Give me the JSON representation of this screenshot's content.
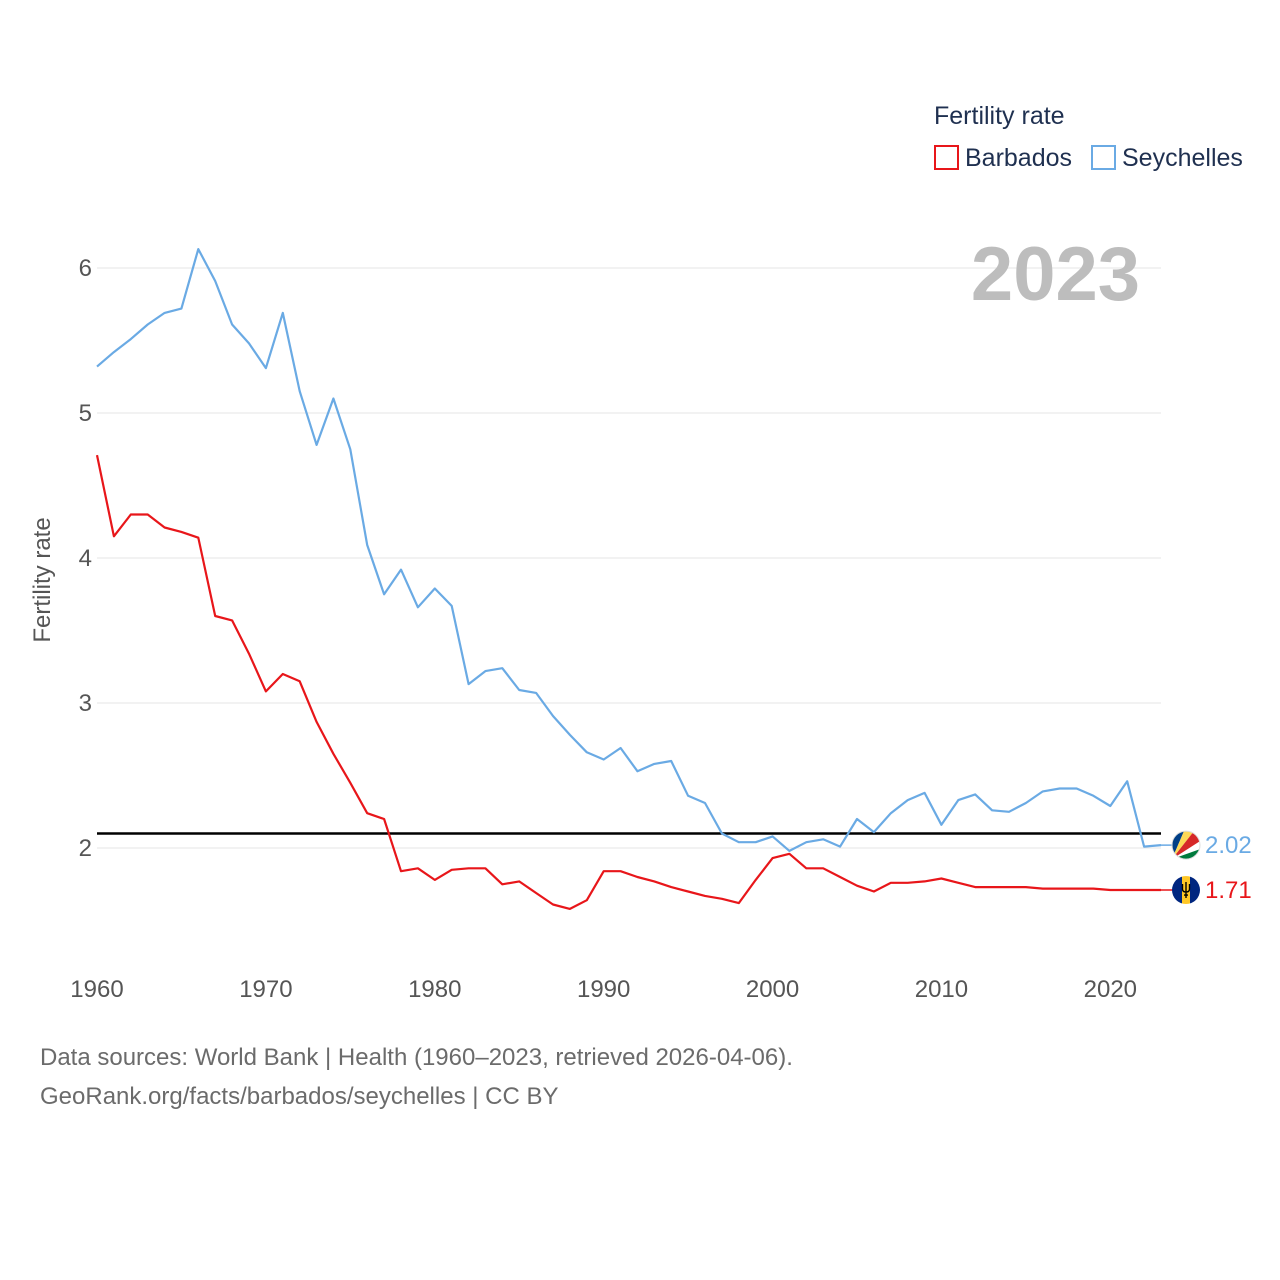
{
  "chart_data": {
    "type": "line",
    "title": "Fertility rate",
    "ylabel": "Fertility rate",
    "xlabel": "",
    "year_label": "2023",
    "xlim": [
      1960,
      2023
    ],
    "ylim": [
      1.3,
      6.35
    ],
    "x_ticks": [
      1960,
      1970,
      1980,
      1990,
      2000,
      2010,
      2020
    ],
    "y_ticks": [
      2,
      3,
      4,
      5,
      6
    ],
    "grid": true,
    "legend_position": "top-right",
    "reference_line": {
      "value": 2.1,
      "color": "#000000"
    },
    "x": [
      1960,
      1961,
      1962,
      1963,
      1964,
      1965,
      1966,
      1967,
      1968,
      1969,
      1970,
      1971,
      1972,
      1973,
      1974,
      1975,
      1976,
      1977,
      1978,
      1979,
      1980,
      1981,
      1982,
      1983,
      1984,
      1985,
      1986,
      1987,
      1988,
      1989,
      1990,
      1991,
      1992,
      1993,
      1994,
      1995,
      1996,
      1997,
      1998,
      1999,
      2000,
      2001,
      2002,
      2003,
      2004,
      2005,
      2006,
      2007,
      2008,
      2009,
      2010,
      2011,
      2012,
      2013,
      2014,
      2015,
      2016,
      2017,
      2018,
      2019,
      2020,
      2021,
      2022,
      2023
    ],
    "series": [
      {
        "name": "Barbados",
        "color": "#e8161a",
        "end_label": "1.71",
        "values": [
          4.71,
          4.15,
          4.3,
          4.3,
          4.21,
          4.18,
          4.14,
          3.6,
          3.57,
          3.34,
          3.08,
          3.2,
          3.15,
          2.87,
          2.65,
          2.45,
          2.24,
          2.2,
          1.84,
          1.86,
          1.78,
          1.85,
          1.86,
          1.86,
          1.75,
          1.77,
          1.69,
          1.61,
          1.58,
          1.64,
          1.84,
          1.84,
          1.8,
          1.77,
          1.73,
          1.7,
          1.67,
          1.65,
          1.62,
          1.78,
          1.93,
          1.96,
          1.86,
          1.86,
          1.8,
          1.74,
          1.7,
          1.76,
          1.76,
          1.77,
          1.79,
          1.76,
          1.73,
          1.73,
          1.73,
          1.73,
          1.72,
          1.72,
          1.72,
          1.72,
          1.71,
          1.71,
          1.71,
          1.71
        ]
      },
      {
        "name": "Seychelles",
        "color": "#6aaae4",
        "end_label": "2.02",
        "values": [
          5.32,
          5.42,
          5.51,
          5.61,
          5.69,
          5.72,
          6.13,
          5.91,
          5.61,
          5.48,
          5.31,
          5.69,
          5.15,
          4.78,
          5.1,
          4.75,
          4.09,
          3.75,
          3.92,
          3.66,
          3.79,
          3.67,
          3.13,
          3.22,
          3.24,
          3.09,
          3.07,
          2.91,
          2.78,
          2.66,
          2.61,
          2.69,
          2.53,
          2.58,
          2.6,
          2.36,
          2.31,
          2.1,
          2.04,
          2.04,
          2.08,
          1.98,
          2.04,
          2.06,
          2.01,
          2.2,
          2.11,
          2.24,
          2.33,
          2.38,
          2.16,
          2.33,
          2.37,
          2.26,
          2.25,
          2.31,
          2.39,
          2.41,
          2.41,
          2.36,
          2.29,
          2.46,
          2.01,
          2.02
        ]
      }
    ]
  },
  "footer": {
    "source_line": "Data sources: World Bank | Health (1960–2023, retrieved 2026-04-06).",
    "url_line": "GeoRank.org/facts/barbados/seychelles | CC BY"
  }
}
